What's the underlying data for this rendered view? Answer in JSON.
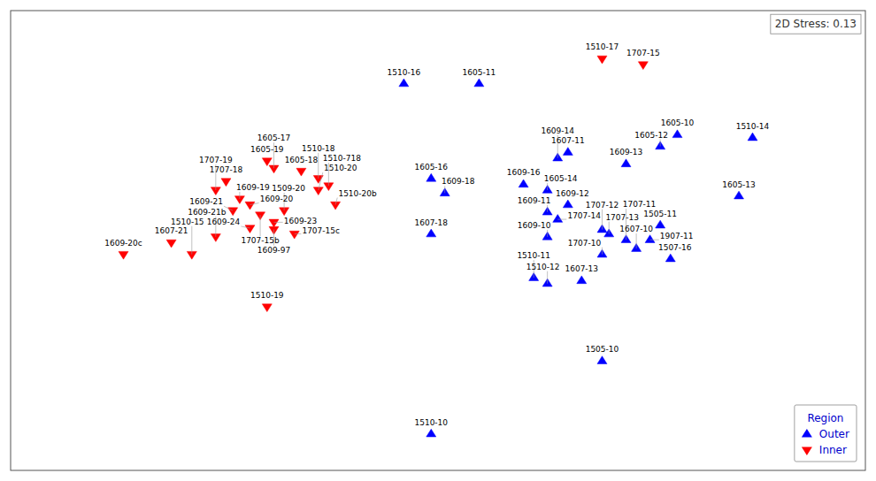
{
  "chart_data": {
    "type": "scatter",
    "xlim": [
      -0.85,
      1.65
    ],
    "ylim": [
      -1.1,
      2.05
    ],
    "tick_labels": false,
    "grid": false,
    "legend": "lower right",
    "legend_title": "Region",
    "annotations": [
      "2D Stress: 0.13"
    ],
    "series": [
      {
        "name": "Outer",
        "color": "#0000FF",
        "marker": "triangle-up",
        "labels": [
          "1510-16",
          "1605-11",
          "1605-10",
          "1510-14",
          "1605-12",
          "1607-11",
          "1609-14",
          "1609-13",
          "1605-16",
          "1609-16",
          "1605-14",
          "1605-13",
          "1609-18",
          "1609-12",
          "1609-11",
          "1707-14",
          "1707-12",
          "1707-13",
          "1505-11",
          "1707-10",
          "1607-10",
          "1507-16",
          "1607-13",
          "1510-12",
          "1510-11",
          "1609-10",
          "1607-18",
          "1505-10",
          "1510-10",
          "1707-11",
          "1907-11"
        ],
        "x": [
          0.3,
          0.52,
          1.1,
          1.32,
          1.05,
          0.78,
          0.75,
          0.95,
          0.38,
          0.65,
          0.72,
          1.28,
          0.42,
          0.78,
          0.72,
          0.75,
          0.88,
          0.9,
          1.05,
          0.88,
          0.98,
          1.08,
          0.82,
          0.72,
          0.68,
          0.72,
          0.38,
          0.88,
          0.38,
          0.95,
          1.02
        ],
        "values": [
          1.55,
          1.55,
          1.2,
          1.18,
          1.12,
          1.08,
          1.04,
          1.0,
          0.9,
          0.86,
          0.82,
          0.78,
          0.8,
          0.72,
          0.67,
          0.62,
          0.55,
          0.52,
          0.58,
          0.38,
          0.42,
          0.35,
          0.2,
          0.18,
          0.22,
          0.5,
          0.52,
          -0.35,
          -0.85,
          0.48,
          0.48
        ]
      },
      {
        "name": "Inner",
        "color": "#FF0000",
        "marker": "triangle-down",
        "labels": [
          "1510-17",
          "1707-15",
          "1605-19",
          "1605-17",
          "1605-18",
          "1510-18",
          "1707-18",
          "1707-19",
          "1510-20",
          "1510-718",
          "1609-19",
          "1609-20",
          "1609-21",
          "1510-20b",
          "1509-20",
          "1707-15b",
          "1609-23",
          "1609-24",
          "1609-97",
          "1707-15c",
          "1609-21b",
          "1607-21",
          "1609-20c",
          "1510-15",
          "1510-19"
        ],
        "x": [
          0.88,
          1.0,
          -0.1,
          -0.08,
          0.0,
          0.05,
          -0.22,
          -0.25,
          0.05,
          0.08,
          -0.18,
          -0.15,
          -0.2,
          0.1,
          -0.05,
          -0.12,
          -0.08,
          -0.15,
          -0.08,
          -0.02,
          -0.25,
          -0.38,
          -0.52,
          -0.32,
          -0.1
        ],
        "values": [
          1.72,
          1.68,
          1.02,
          0.97,
          0.95,
          0.9,
          0.88,
          0.82,
          0.82,
          0.85,
          0.76,
          0.72,
          0.68,
          0.72,
          0.68,
          0.65,
          0.6,
          0.56,
          0.55,
          0.52,
          0.5,
          0.46,
          0.38,
          0.38,
          0.02
        ]
      }
    ]
  }
}
